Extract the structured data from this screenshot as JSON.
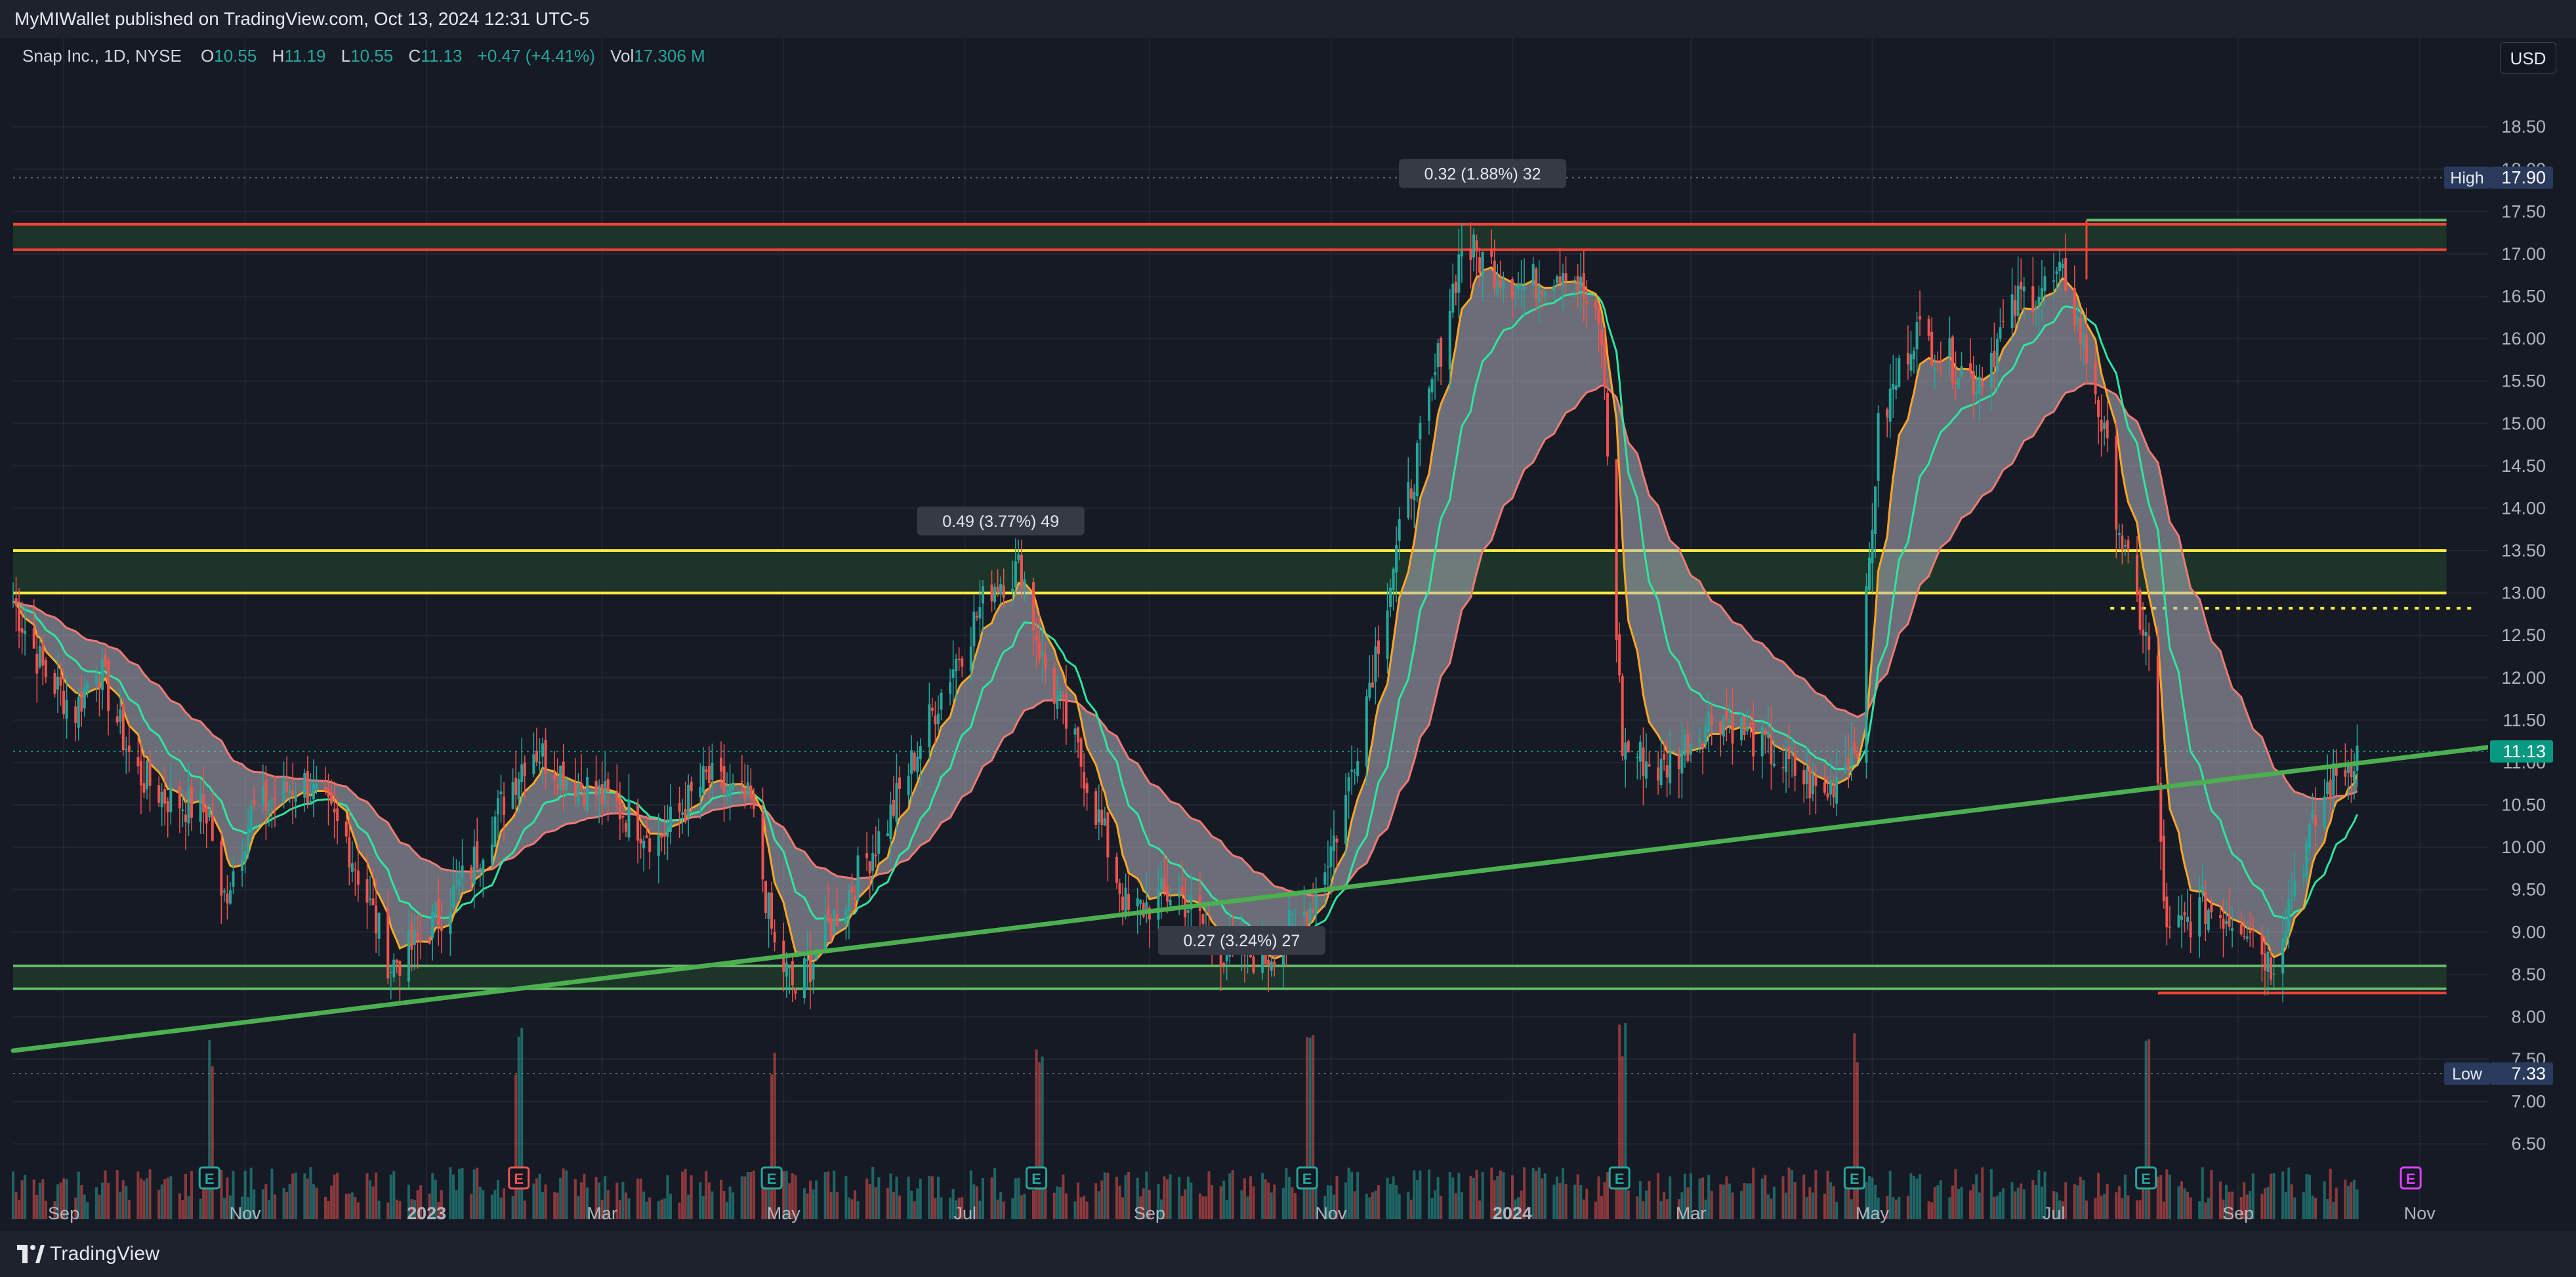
{
  "header": {
    "published": "MyMIWallet published on TradingView.com, Oct 13, 2024 12:31 UTC-5"
  },
  "legend": {
    "symbol": "Snap Inc., 1D, NYSE",
    "o_label": "O",
    "o": "10.55",
    "h_label": "H",
    "h": "11.19",
    "l_label": "L",
    "l": "10.55",
    "c_label": "C",
    "c": "11.13",
    "change": "+0.47 (+4.41%)",
    "vol_label": "Vol",
    "vol": "17.306 M"
  },
  "currency_button": "USD",
  "footer": {
    "brand": "TradingView"
  },
  "colors": {
    "up": "#26a69a",
    "down": "#ef5350",
    "trend": "#4caf50",
    "resistance": "#f44336",
    "yellow_zone": "#ffeb3b",
    "support": "#66bb6a",
    "ribbon_fill": "#b2b5be",
    "price_badge": "#089981",
    "extreme_badge": "#2a3a5c"
  },
  "chart_data": {
    "type": "candlestick",
    "title": "Snap Inc., 1D, NYSE",
    "x_range": [
      "2022-08-15",
      "2024-11-24"
    ],
    "ylim": [
      6.3,
      18.8
    ],
    "y_ticks": [
      "6.50",
      "7.00",
      "7.50",
      "8.00",
      "8.50",
      "9.00",
      "9.50",
      "10.00",
      "10.50",
      "11.00",
      "11.50",
      "12.00",
      "12.50",
      "13.00",
      "13.50",
      "14.00",
      "14.50",
      "15.00",
      "15.50",
      "16.00",
      "16.50",
      "17.00",
      "17.50",
      "18.00",
      "18.50"
    ],
    "x_ticks": [
      {
        "label": "Sep",
        "date": "2022-09-01",
        "bold": false
      },
      {
        "label": "Nov",
        "date": "2022-11-01",
        "bold": false
      },
      {
        "label": "2023",
        "date": "2023-01-01",
        "bold": true
      },
      {
        "label": "Mar",
        "date": "2023-03-01",
        "bold": false
      },
      {
        "label": "May",
        "date": "2023-05-01",
        "bold": false
      },
      {
        "label": "Jul",
        "date": "2023-07-01",
        "bold": false
      },
      {
        "label": "Sep",
        "date": "2023-09-01",
        "bold": false
      },
      {
        "label": "Nov",
        "date": "2023-11-01",
        "bold": false
      },
      {
        "label": "2024",
        "date": "2024-01-01",
        "bold": true
      },
      {
        "label": "Mar",
        "date": "2024-03-01",
        "bold": false
      },
      {
        "label": "May",
        "date": "2024-05-01",
        "bold": false
      },
      {
        "label": "Jul",
        "date": "2024-07-01",
        "bold": false
      },
      {
        "label": "Sep",
        "date": "2024-09-01",
        "bold": false
      },
      {
        "label": "Nov",
        "date": "2024-11-01",
        "bold": false
      }
    ],
    "price_path": [
      [
        "2022-08-15",
        12.9
      ],
      [
        "2022-08-25",
        12.1
      ],
      [
        "2022-09-05",
        11.6
      ],
      [
        "2022-09-12",
        12.2
      ],
      [
        "2022-09-25",
        10.9
      ],
      [
        "2022-10-05",
        10.6
      ],
      [
        "2022-10-20",
        10.4
      ],
      [
        "2022-10-24",
        9.3
      ],
      [
        "2022-11-03",
        10.4
      ],
      [
        "2022-11-20",
        10.8
      ],
      [
        "2022-12-05",
        10.1
      ],
      [
        "2022-12-20",
        8.6
      ],
      [
        "2022-12-30",
        8.9
      ],
      [
        "2023-01-15",
        9.7
      ],
      [
        "2023-02-05",
        11.2
      ],
      [
        "2023-02-15",
        10.9
      ],
      [
        "2023-03-05",
        10.5
      ],
      [
        "2023-03-20",
        10.1
      ],
      [
        "2023-04-05",
        10.8
      ],
      [
        "2023-04-20",
        10.5
      ],
      [
        "2023-04-28",
        8.8
      ],
      [
        "2023-05-05",
        8.3
      ],
      [
        "2023-05-20",
        9.3
      ],
      [
        "2023-06-05",
        10.3
      ],
      [
        "2023-06-25",
        12.0
      ],
      [
        "2023-07-10",
        13.1
      ],
      [
        "2023-07-20",
        13.3
      ],
      [
        "2023-07-27",
        12.2
      ],
      [
        "2023-08-10",
        10.9
      ],
      [
        "2023-08-25",
        9.2
      ],
      [
        "2023-09-10",
        9.5
      ],
      [
        "2023-09-25",
        8.8
      ],
      [
        "2023-10-10",
        8.7
      ],
      [
        "2023-10-25",
        9.3
      ],
      [
        "2023-11-05",
        10.4
      ],
      [
        "2023-11-20",
        13.0
      ],
      [
        "2023-12-05",
        15.4
      ],
      [
        "2023-12-15",
        17.1
      ],
      [
        "2024-01-05",
        16.6
      ],
      [
        "2024-01-20",
        16.9
      ],
      [
        "2024-01-31",
        16.0
      ],
      [
        "2024-02-07",
        11.2
      ],
      [
        "2024-02-20",
        10.9
      ],
      [
        "2024-03-10",
        11.6
      ],
      [
        "2024-03-25",
        11.2
      ],
      [
        "2024-04-15",
        10.6
      ],
      [
        "2024-04-26",
        11.3
      ],
      [
        "2024-05-03",
        14.9
      ],
      [
        "2024-05-15",
        16.1
      ],
      [
        "2024-06-05",
        15.5
      ],
      [
        "2024-06-20",
        16.5
      ],
      [
        "2024-07-05",
        16.7
      ],
      [
        "2024-07-15",
        15.4
      ],
      [
        "2024-07-25",
        13.4
      ],
      [
        "2024-08-02",
        12.3
      ],
      [
        "2024-08-08",
        8.9
      ],
      [
        "2024-08-20",
        9.3
      ],
      [
        "2024-09-05",
        9.1
      ],
      [
        "2024-09-12",
        8.6
      ],
      [
        "2024-09-20",
        9.6
      ],
      [
        "2024-10-01",
        10.7
      ],
      [
        "2024-10-11",
        11.13
      ]
    ],
    "earnings_markers": [
      {
        "date": "2022-10-20",
        "label": "E",
        "color": "#26a69a"
      },
      {
        "date": "2023-02-01",
        "label": "E",
        "color": "#ef5350"
      },
      {
        "date": "2023-04-27",
        "label": "E",
        "color": "#26a69a"
      },
      {
        "date": "2023-07-25",
        "label": "E",
        "color": "#26a69a"
      },
      {
        "date": "2023-10-24",
        "label": "E",
        "color": "#26a69a"
      },
      {
        "date": "2024-02-06",
        "label": "E",
        "color": "#26a69a"
      },
      {
        "date": "2024-04-25",
        "label": "E",
        "color": "#26a69a"
      },
      {
        "date": "2024-08-01",
        "label": "E",
        "color": "#26a69a"
      },
      {
        "date": "2024-10-29",
        "label": "E",
        "color": "#e040fb"
      }
    ],
    "zones": [
      {
        "from": 17.05,
        "to": 17.35,
        "color": "resistance",
        "x_start": "2022-08-15",
        "x_end": "2024-11-10"
      },
      {
        "from": 13.0,
        "to": 13.5,
        "color": "yellow_zone",
        "x_start": "2022-08-15",
        "x_end": "2024-11-10"
      },
      {
        "from": 8.33,
        "to": 8.6,
        "color": "support",
        "x_start": "2022-08-15",
        "x_end": "2024-11-10"
      }
    ],
    "trendline": {
      "start": [
        "2022-08-15",
        7.6
      ],
      "end": [
        "2024-11-24",
        11.18
      ]
    },
    "high": {
      "label": "High",
      "value": 17.9
    },
    "low": {
      "label": "Low",
      "value": 7.33
    },
    "last": {
      "value": 11.13,
      "label": "11.13"
    },
    "annotations": [
      {
        "text": "0.49 (3.77%) 49",
        "date": "2023-07-13",
        "price": 13.85
      },
      {
        "text": "0.32 (1.88%) 32",
        "date": "2023-12-22",
        "price": 17.95
      },
      {
        "text": "0.27 (3.24%) 27",
        "date": "2023-10-02",
        "price": 8.9
      }
    ]
  }
}
